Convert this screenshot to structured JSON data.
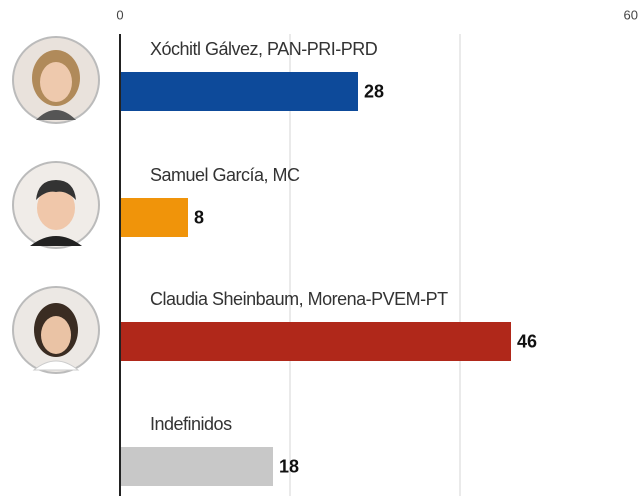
{
  "chart_data": {
    "type": "bar",
    "orientation": "horizontal",
    "categories": [
      "Xóchitl Gálvez, PAN-PRI-PRD",
      "Samuel García, MC",
      "Claudia Sheinbaum, Morena-PVEM-PT",
      "Indefinidos"
    ],
    "values": [
      28,
      8,
      46,
      18
    ],
    "colors": [
      "#0d4a9a",
      "#f0940a",
      "#b0281a",
      "#c8c8c8"
    ],
    "xlim": [
      0,
      60
    ],
    "xticks": [
      0,
      60
    ],
    "grid_lines": [
      20,
      40
    ],
    "grid": true
  }
}
